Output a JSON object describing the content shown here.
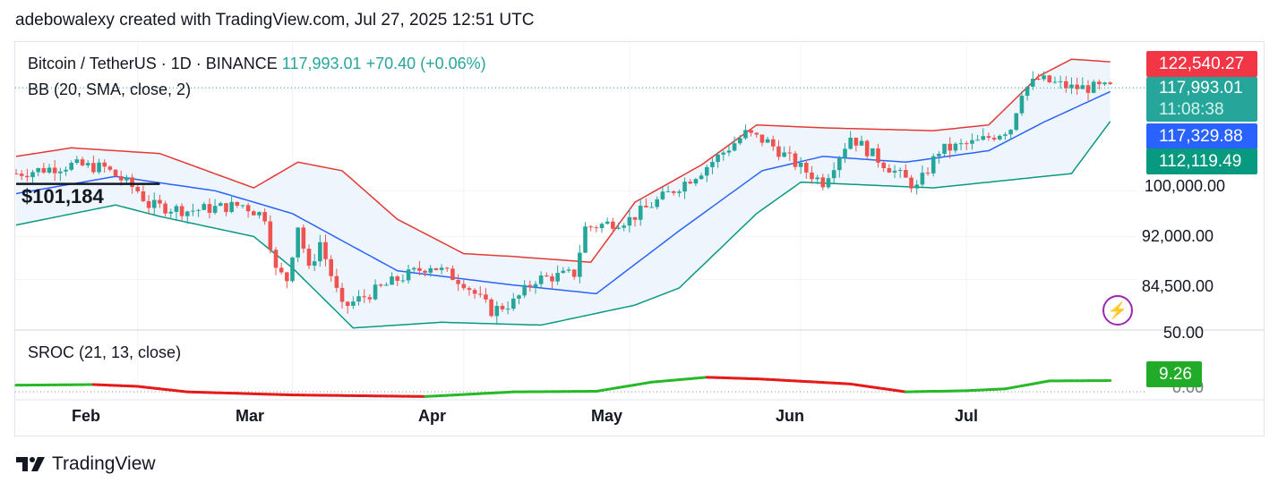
{
  "header": {
    "text": "adebowalexy created with TradingView.com, Jul 27, 2025 12:51 UTC"
  },
  "legend": {
    "symbol": "Bitcoin / TetherUS · 1D · BINANCE",
    "price": "117,993.01",
    "change": "+70.40 (+0.06%)",
    "bb": "BB (20, SMA, close, 2)",
    "sroc": "SROC (21, 13, close)"
  },
  "price_tags": {
    "upper": "122,540.27",
    "last": "117,993.01",
    "countdown": "11:08:38",
    "basis": "117,329.88",
    "lower": "112,119.49",
    "sroc": "9.26"
  },
  "annotation": {
    "label": "$101,184"
  },
  "brand": {
    "name": "TradingView",
    "logo": "tradingview-logo-icon"
  },
  "icons": {
    "alert": "lightning-bolt-icon"
  },
  "colors": {
    "up": "#26a69a",
    "down": "#ef5350",
    "bb_upper": "#e53935",
    "bb_basis": "#2962ff",
    "bb_lower": "#089981",
    "bb_fill": "#eef5fc",
    "sroc_up": "#28b928",
    "sroc_down": "#e51a1a",
    "tag_upper": "#f23645",
    "tag_last": "#26a69a",
    "tag_basis": "#2962ff",
    "tag_lower": "#089981",
    "tag_sroc": "#22ab29"
  },
  "chart_data": [
    {
      "type": "candlestick",
      "title": "Bitcoin / TetherUS · 1D · BINANCE",
      "indicator": "BB (20, SMA, close, 2)",
      "y_ticks": [
        "100,000.00",
        "92,000.00",
        "84,500.00"
      ],
      "y_tick_values": [
        100000,
        92000,
        84500
      ],
      "ylim": [
        75800,
        126000
      ],
      "x_tick_labels": [
        "Feb",
        "Mar",
        "Apr",
        "May",
        "Jun",
        "Jul"
      ],
      "x_tick_dates": [
        "2025-02-01",
        "2025-03-01",
        "2025-04-01",
        "2025-05-01",
        "2025-06-01",
        "2025-07-01"
      ],
      "x_range": [
        "2025-01-10",
        "2025-07-29"
      ],
      "close_anchors": [
        {
          "date": "2025-01-10",
          "close": 103000
        },
        {
          "date": "2025-01-20",
          "close": 104500
        },
        {
          "date": "2025-01-26",
          "close": 104000
        },
        {
          "date": "2025-02-01",
          "close": 100000
        },
        {
          "date": "2025-02-03",
          "close": 97500
        },
        {
          "date": "2025-02-10",
          "close": 96500
        },
        {
          "date": "2025-02-20",
          "close": 97500
        },
        {
          "date": "2025-02-24",
          "close": 95500
        },
        {
          "date": "2025-02-26",
          "close": 86000
        },
        {
          "date": "2025-02-28",
          "close": 84500
        },
        {
          "date": "2025-03-02",
          "close": 94000
        },
        {
          "date": "2025-03-04",
          "close": 86000
        },
        {
          "date": "2025-03-06",
          "close": 91000
        },
        {
          "date": "2025-03-10",
          "close": 79500
        },
        {
          "date": "2025-03-20",
          "close": 84500
        },
        {
          "date": "2025-03-26",
          "close": 87000
        },
        {
          "date": "2025-04-01",
          "close": 84000
        },
        {
          "date": "2025-04-06",
          "close": 79000
        },
        {
          "date": "2025-04-10",
          "close": 80500
        },
        {
          "date": "2025-04-14",
          "close": 84500
        },
        {
          "date": "2025-04-21",
          "close": 85500
        },
        {
          "date": "2025-04-23",
          "close": 93500
        },
        {
          "date": "2025-05-01",
          "close": 95000
        },
        {
          "date": "2025-05-08",
          "close": 99500
        },
        {
          "date": "2025-05-14",
          "close": 103500
        },
        {
          "date": "2025-05-22",
          "close": 110000
        },
        {
          "date": "2025-05-26",
          "close": 108500
        },
        {
          "date": "2025-06-01",
          "close": 104000
        },
        {
          "date": "2025-06-05",
          "close": 101500
        },
        {
          "date": "2025-06-10",
          "close": 109500
        },
        {
          "date": "2025-06-15",
          "close": 105500
        },
        {
          "date": "2025-06-22",
          "close": 100500
        },
        {
          "date": "2025-06-26",
          "close": 107000
        },
        {
          "date": "2025-07-03",
          "close": 108500
        },
        {
          "date": "2025-07-09",
          "close": 111000
        },
        {
          "date": "2025-07-11",
          "close": 117500
        },
        {
          "date": "2025-07-14",
          "close": 119500
        },
        {
          "date": "2025-07-20",
          "close": 118000
        },
        {
          "date": "2025-07-27",
          "close": 117993
        }
      ],
      "bb_upper": [
        {
          "date": "2025-01-10",
          "close": 106000
        },
        {
          "date": "2025-01-20",
          "close": 107500
        },
        {
          "date": "2025-02-05",
          "close": 106500
        },
        {
          "date": "2025-02-22",
          "close": 100500
        },
        {
          "date": "2025-03-02",
          "close": 105000
        },
        {
          "date": "2025-03-10",
          "close": 103500
        },
        {
          "date": "2025-03-20",
          "close": 95000
        },
        {
          "date": "2025-04-01",
          "close": 89000
        },
        {
          "date": "2025-04-10",
          "close": 88500
        },
        {
          "date": "2025-04-24",
          "close": 87500
        },
        {
          "date": "2025-05-02",
          "close": 98000
        },
        {
          "date": "2025-05-14",
          "close": 104500
        },
        {
          "date": "2025-05-24",
          "close": 111500
        },
        {
          "date": "2025-06-05",
          "close": 111000
        },
        {
          "date": "2025-06-25",
          "close": 110500
        },
        {
          "date": "2025-07-05",
          "close": 111500
        },
        {
          "date": "2025-07-14",
          "close": 120000
        },
        {
          "date": "2025-07-20",
          "close": 123000
        },
        {
          "date": "2025-07-27",
          "close": 122540
        }
      ],
      "bb_basis": [
        {
          "date": "2025-01-10",
          "close": 99500
        },
        {
          "date": "2025-01-28",
          "close": 102500
        },
        {
          "date": "2025-02-15",
          "close": 100000
        },
        {
          "date": "2025-03-01",
          "close": 96000
        },
        {
          "date": "2025-03-20",
          "close": 86000
        },
        {
          "date": "2025-04-10",
          "close": 83500
        },
        {
          "date": "2025-04-25",
          "close": 82000
        },
        {
          "date": "2025-05-10",
          "close": 93000
        },
        {
          "date": "2025-05-25",
          "close": 103500
        },
        {
          "date": "2025-06-05",
          "close": 106000
        },
        {
          "date": "2025-06-20",
          "close": 105000
        },
        {
          "date": "2025-07-05",
          "close": 107000
        },
        {
          "date": "2025-07-15",
          "close": 112000
        },
        {
          "date": "2025-07-27",
          "close": 117330
        }
      ],
      "bb_lower": [
        {
          "date": "2025-01-10",
          "close": 94000
        },
        {
          "date": "2025-01-28",
          "close": 97500
        },
        {
          "date": "2025-02-05",
          "close": 95500
        },
        {
          "date": "2025-02-22",
          "close": 92000
        },
        {
          "date": "2025-03-01",
          "close": 86500
        },
        {
          "date": "2025-03-12",
          "close": 76000
        },
        {
          "date": "2025-03-28",
          "close": 77000
        },
        {
          "date": "2025-04-15",
          "close": 76500
        },
        {
          "date": "2025-05-02",
          "close": 80000
        },
        {
          "date": "2025-05-10",
          "close": 83000
        },
        {
          "date": "2025-05-24",
          "close": 96000
        },
        {
          "date": "2025-06-01",
          "close": 101500
        },
        {
          "date": "2025-06-25",
          "close": 100500
        },
        {
          "date": "2025-07-05",
          "close": 101500
        },
        {
          "date": "2025-07-20",
          "close": 103000
        },
        {
          "date": "2025-07-27",
          "close": 112119
        }
      ]
    },
    {
      "type": "line",
      "title": "SROC (21, 13, close)",
      "y_ticks": [
        "50.00",
        "0.00"
      ],
      "ylim": [
        -5,
        50
      ],
      "points": [
        {
          "date": "2025-01-10",
          "value": 5.5
        },
        {
          "date": "2025-01-24",
          "value": 6.0
        },
        {
          "date": "2025-02-01",
          "value": 4.5
        },
        {
          "date": "2025-02-10",
          "value": 0.0
        },
        {
          "date": "2025-03-01",
          "value": -2.5
        },
        {
          "date": "2025-03-25",
          "value": -3.8
        },
        {
          "date": "2025-04-10",
          "value": 0.0
        },
        {
          "date": "2025-04-25",
          "value": 0.5
        },
        {
          "date": "2025-05-05",
          "value": 8.0
        },
        {
          "date": "2025-05-15",
          "value": 12.0
        },
        {
          "date": "2025-05-25",
          "value": 10.5
        },
        {
          "date": "2025-06-10",
          "value": 6.5
        },
        {
          "date": "2025-06-20",
          "value": 0.0
        },
        {
          "date": "2025-07-01",
          "value": 1.0
        },
        {
          "date": "2025-07-08",
          "value": 2.5
        },
        {
          "date": "2025-07-16",
          "value": 9.0
        },
        {
          "date": "2025-07-27",
          "value": 9.26
        }
      ]
    }
  ]
}
